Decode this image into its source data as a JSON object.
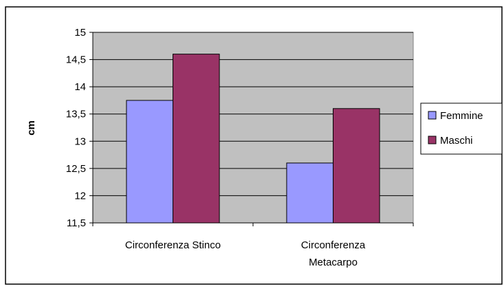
{
  "chart_data": {
    "type": "bar",
    "title": "",
    "xlabel": "",
    "ylabel": "cm",
    "ylim": [
      11.5,
      15
    ],
    "yticks": [
      "11,5",
      "12",
      "12,5",
      "13",
      "13,5",
      "14",
      "14,5",
      "15"
    ],
    "ytick_values": [
      11.5,
      12,
      12.5,
      13,
      13.5,
      14,
      14.5,
      15
    ],
    "categories": [
      [
        "Circonferenza Stinco"
      ],
      [
        "Circonferenza",
        "Metacarpo"
      ]
    ],
    "series": [
      {
        "name": "Femmine",
        "color": "#9999ff",
        "values": [
          13.75,
          12.6
        ]
      },
      {
        "name": "Maschi",
        "color": "#993366",
        "values": [
          14.6,
          13.6
        ]
      }
    ],
    "grid": true,
    "plot_background": "#c0c0c0",
    "legend_position": "right"
  }
}
